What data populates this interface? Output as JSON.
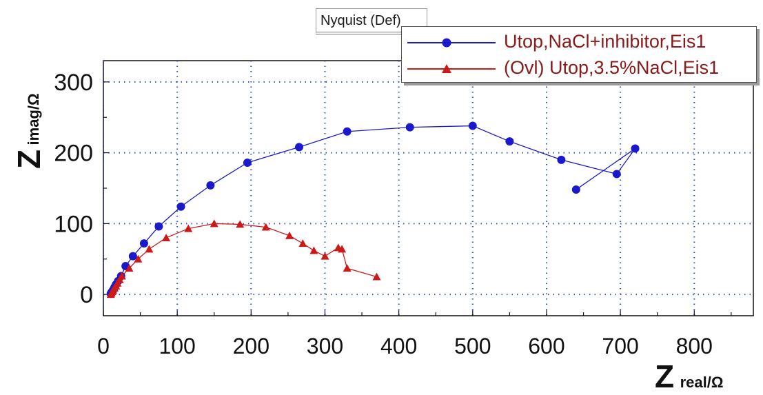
{
  "window": {
    "tab_title": "Nyquist (Def)"
  },
  "chart_data": {
    "type": "scatter",
    "title": "",
    "xlabel": {
      "main": "Z",
      "sub": "real/Ω"
    },
    "ylabel": {
      "main": "Z",
      "sub": "imag/Ω"
    },
    "xlim": [
      0,
      880
    ],
    "ylim": [
      -30,
      330
    ],
    "x_ticks": [
      0,
      100,
      200,
      300,
      400,
      500,
      600,
      700,
      800
    ],
    "y_ticks": [
      0,
      100,
      200,
      300
    ],
    "x_tick_labels": [
      "0",
      "100",
      "200",
      "300",
      "400",
      "500",
      "600",
      "700",
      "800"
    ],
    "y_tick_labels": [
      "0",
      "100",
      "200",
      "300"
    ],
    "grid": true,
    "legend_position": "top-right",
    "series": [
      {
        "name": "Utop,NaCl+inhibitor,Eis1",
        "color": "#1a1acc",
        "marker": "circle",
        "points": [
          [
            10,
            1
          ],
          [
            11,
            3
          ],
          [
            13,
            6
          ],
          [
            15,
            10
          ],
          [
            17,
            14
          ],
          [
            20,
            19
          ],
          [
            24,
            26
          ],
          [
            30,
            40
          ],
          [
            40,
            54
          ],
          [
            55,
            72
          ],
          [
            75,
            96
          ],
          [
            105,
            124
          ],
          [
            145,
            154
          ],
          [
            195,
            186
          ],
          [
            265,
            208
          ],
          [
            330,
            230
          ],
          [
            415,
            236
          ],
          [
            500,
            238
          ],
          [
            550,
            216
          ],
          [
            620,
            190
          ],
          [
            695,
            170
          ],
          [
            720,
            206
          ],
          [
            640,
            148
          ]
        ]
      },
      {
        "name": "(Ovl) Utop,3.5%NaCl,Eis1",
        "color": "#cc1a1a",
        "marker": "triangle",
        "points": [
          [
            10,
            0
          ],
          [
            11,
            2
          ],
          [
            12,
            4
          ],
          [
            13,
            6
          ],
          [
            15,
            9
          ],
          [
            17,
            12
          ],
          [
            19,
            16
          ],
          [
            22,
            21
          ],
          [
            25,
            26
          ],
          [
            35,
            37
          ],
          [
            47,
            50
          ],
          [
            62,
            64
          ],
          [
            85,
            80
          ],
          [
            115,
            93
          ],
          [
            150,
            100
          ],
          [
            185,
            99
          ],
          [
            220,
            95
          ],
          [
            252,
            83
          ],
          [
            270,
            72
          ],
          [
            285,
            62
          ],
          [
            300,
            54
          ],
          [
            318,
            66
          ],
          [
            323,
            64
          ],
          [
            330,
            37
          ],
          [
            370,
            25
          ]
        ]
      }
    ]
  }
}
